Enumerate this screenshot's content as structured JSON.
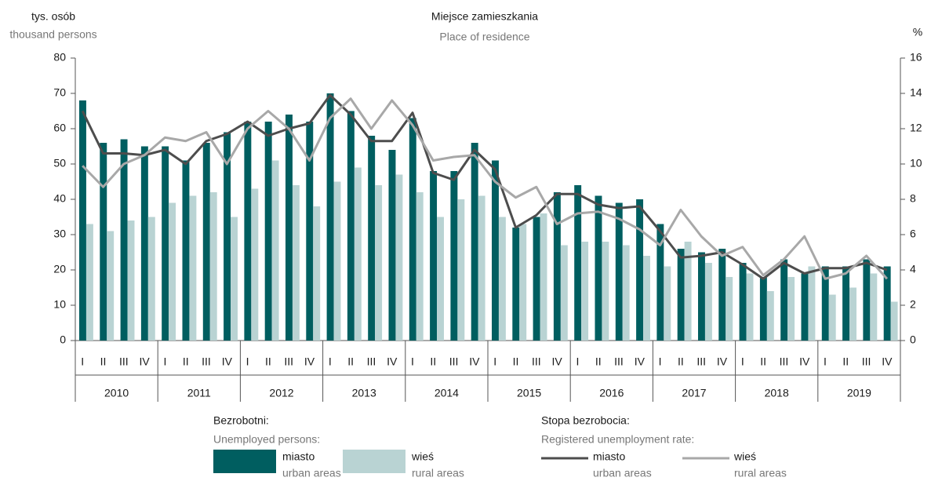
{
  "chart_data": {
    "type": "bar",
    "title": "Miejsce zamieszkania",
    "subtitle": "Place of residence",
    "y_label": "tys. osób",
    "y_label_en": "thousand persons",
    "y2_label": "%",
    "categories": [
      "I",
      "II",
      "III",
      "IV",
      "I",
      "II",
      "III",
      "IV",
      "I",
      "II",
      "III",
      "IV",
      "I",
      "II",
      "III",
      "IV",
      "I",
      "II",
      "III",
      "IV",
      "I",
      "II",
      "III",
      "IV",
      "I",
      "II",
      "III",
      "IV",
      "I",
      "II",
      "III",
      "IV",
      "I",
      "II",
      "III",
      "IV",
      "I",
      "II",
      "III",
      "IV"
    ],
    "years": [
      "2010",
      "2011",
      "2012",
      "2013",
      "2014",
      "2015",
      "2016",
      "2017",
      "2018",
      "2019"
    ],
    "legend_groups": [
      {
        "title": "Bezrobotni:",
        "subtitle": "Unemployed persons:"
      },
      {
        "title": "Stopa bezrobocia:",
        "subtitle": "Registered unemployment rate:"
      }
    ],
    "series": [
      {
        "name": "miasto",
        "name_en": "urban areas",
        "type": "bar",
        "color": "#005e60",
        "values": [
          68,
          56,
          57,
          55,
          55,
          51,
          56,
          59,
          62,
          62,
          64,
          62,
          70,
          65,
          58,
          54,
          63,
          48,
          48,
          56,
          51,
          32,
          35,
          42,
          44,
          41,
          39,
          40,
          33,
          26,
          25,
          26,
          22,
          18,
          23,
          19,
          21,
          21,
          23,
          21
        ]
      },
      {
        "name": "wieś",
        "name_en": "rural areas",
        "type": "bar",
        "color": "#b9d3d3",
        "values": [
          33,
          31,
          34,
          35,
          39,
          41,
          42,
          35,
          43,
          51,
          44,
          38,
          45,
          49,
          44,
          47,
          42,
          35,
          40,
          41,
          35,
          33,
          36,
          27,
          28,
          28,
          27,
          24,
          21,
          28,
          22,
          18,
          19,
          14,
          18,
          21,
          13,
          15,
          19,
          11
        ]
      },
      {
        "name": "miasto",
        "name_en": "urban areas",
        "type": "line",
        "axis": "y2",
        "color": "#4d4d4d",
        "values": [
          13.0,
          10.6,
          10.6,
          10.5,
          10.8,
          10.0,
          11.3,
          11.7,
          12.4,
          11.6,
          12.0,
          12.3,
          13.9,
          12.8,
          11.3,
          11.3,
          12.9,
          9.5,
          9.1,
          10.8,
          9.7,
          6.4,
          7.1,
          8.3,
          8.3,
          7.7,
          7.5,
          7.6,
          6.2,
          4.7,
          4.8,
          5.0,
          4.3,
          3.5,
          4.4,
          3.8,
          4.1,
          4.1,
          4.4,
          4.0
        ]
      },
      {
        "name": "wieś",
        "name_en": "rural areas",
        "type": "line",
        "axis": "y2",
        "color": "#a8a8a8",
        "values": [
          9.9,
          8.7,
          10.0,
          10.5,
          11.5,
          11.3,
          11.8,
          10.0,
          12.0,
          13.0,
          12.0,
          10.2,
          12.6,
          13.7,
          12.0,
          13.6,
          12.2,
          10.2,
          10.4,
          10.5,
          9.0,
          8.1,
          8.7,
          6.6,
          7.2,
          7.3,
          6.9,
          6.3,
          5.4,
          7.4,
          5.9,
          4.8,
          5.3,
          3.7,
          4.6,
          5.9,
          3.5,
          3.8,
          4.8,
          3.5
        ]
      }
    ],
    "ylim": [
      0,
      80
    ],
    "yticks": [
      0,
      10,
      20,
      30,
      40,
      50,
      60,
      70,
      80
    ],
    "y2lim": [
      0,
      16
    ],
    "y2ticks": [
      0,
      2,
      4,
      6,
      8,
      10,
      12,
      14,
      16
    ]
  }
}
